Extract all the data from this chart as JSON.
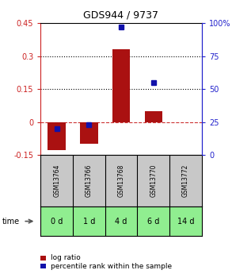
{
  "title": "GDS944 / 9737",
  "categories": [
    "GSM13764",
    "GSM13766",
    "GSM13768",
    "GSM13770",
    "GSM13772"
  ],
  "time_labels": [
    "0 d",
    "1 d",
    "4 d",
    "6 d",
    "14 d"
  ],
  "log_ratios": [
    -0.13,
    -0.1,
    0.33,
    0.05,
    0.0
  ],
  "percentile_ranks": [
    20.0,
    23.0,
    97.0,
    55.0,
    null
  ],
  "bar_color": "#AA1111",
  "dot_color": "#1111AA",
  "ylim_left": [
    -0.15,
    0.45
  ],
  "ylim_right": [
    0,
    100
  ],
  "yticks_left": [
    -0.15,
    0,
    0.15,
    0.3,
    0.45
  ],
  "yticks_right": [
    0,
    25,
    50,
    75,
    100
  ],
  "hlines": [
    0.15,
    0.3
  ],
  "zero_line": 0.0,
  "zero_color": "#CC3333",
  "left_axis_color": "#CC2222",
  "right_axis_color": "#2222CC",
  "bar_width": 0.55,
  "legend_labels": [
    "log ratio",
    "percentile rank within the sample"
  ],
  "time_row_color": "#90EE90",
  "gsm_row_color": "#C8C8C8",
  "background_color": "#FFFFFF"
}
